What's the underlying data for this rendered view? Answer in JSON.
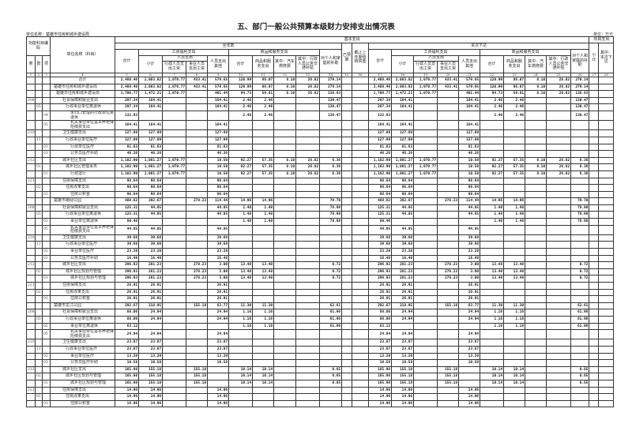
{
  "title": "五、部门一般公共预算本级财力安排支出情况表",
  "unit_name": "单位名称：楚雄市住房和城乡建设局",
  "unit_label": "单位：万元",
  "header": {
    "func_code": "功能科目编码",
    "lei": "类",
    "kuan": "款",
    "xiang": "项",
    "unit_col": "单位名称（科目）",
    "basic": "基本支出",
    "project": "项目支出",
    "full_year": "全年数",
    "this_issue": "本次下达",
    "col15": "已预算",
    "col16": "截止上年度结转资金",
    "total": "合计",
    "wage": "工资福利支出",
    "goods": "商品和服务支出",
    "personal": "对个人和家庭的补助",
    "subtotal": "小计",
    "staff": "人员支出",
    "staff_other": "人员支出其他",
    "admin_wage": "行政人员支出工资",
    "inst_wage": "事业人员支出工资",
    "goods_total": "合计",
    "goods_exp": "商品和服务支出",
    "car": "其中：汽车燃修费",
    "transport": "其中：行政人员公务交通补贴",
    "proj_subtotal": "小计",
    "proj_issue": "其中：本次下达",
    "col_numbers": [
      "1",
      "2",
      "3",
      "4",
      "5",
      "6",
      "7",
      "8",
      "9",
      "10",
      "11",
      "12",
      "13",
      "14",
      "15",
      "16",
      "17",
      "18",
      "19",
      "20",
      "21",
      "22",
      "23",
      "24",
      "25",
      "26",
      "27",
      "28"
    ]
  },
  "rows": [
    {
      "c": [
        "",
        "",
        ""
      ],
      "n": "合计",
      "i": -1,
      "v": [
        "2,488.46",
        "2,083.82",
        "1,070.77",
        "433.41",
        "579.65",
        "120.99",
        "86.07",
        "8.10",
        "26.82",
        "279.14"
      ]
    },
    {
      "c": [
        "",
        "",
        ""
      ],
      "n": "楚雄市住房和城乡建设局",
      "i": 0,
      "v": [
        "2,488.46",
        "2,083.82",
        "1,070.77",
        "433.41",
        "579.65",
        "120.99",
        "86.07",
        "8.10",
        "26.82",
        "279.14"
      ]
    },
    {
      "c": [
        "",
        "",
        ""
      ],
      "n": "楚雄市住房和城乡建设局",
      "i": 1,
      "v": [
        "1,706.77",
        "1,472.21",
        "1,070.77",
        "",
        "401.44",
        "94.73",
        "59.81",
        "8.10",
        "26.82",
        "136.83"
      ]
    },
    {
      "c": [
        "208",
        "",
        ""
      ],
      "n": "社会保障和就业支出",
      "i": 2,
      "v": [
        "297.34",
        "164.41",
        "",
        "",
        "164.41",
        "2.46",
        "2.46",
        "",
        "",
        "130.47"
      ]
    },
    {
      "c": [
        "",
        "05",
        ""
      ],
      "n": "行政事业单位离退休",
      "i": 3,
      "v": [
        "297.34",
        "164.41",
        "",
        "",
        "164.41",
        "2.46",
        "2.46",
        "",
        "",
        "130.47"
      ]
    },
    {
      "c": [
        "",
        "",
        "04"
      ],
      "n": "未归口管理的行政单位离退休",
      "i": 4,
      "v": [
        "132.93",
        "",
        "",
        "",
        "",
        "2.46",
        "2.46",
        "",
        "",
        "130.47"
      ]
    },
    {
      "c": [
        "",
        "",
        "05"
      ],
      "n": "机关事业单位基本养老保险缴费支出",
      "i": 4,
      "v": [
        "164.41",
        "164.41",
        "",
        "",
        "164.41",
        "",
        "",
        "",
        "",
        ""
      ]
    },
    {
      "c": [
        "210",
        "",
        ""
      ],
      "n": "卫生健康支出",
      "i": 2,
      "v": [
        "127.89",
        "127.89",
        "",
        "",
        "127.89",
        "",
        "",
        "",
        "",
        ""
      ]
    },
    {
      "c": [
        "",
        "11",
        ""
      ],
      "n": "行政事业单位医疗",
      "i": 3,
      "v": [
        "127.89",
        "127.89",
        "",
        "",
        "127.89",
        "",
        "",
        "",
        "",
        ""
      ]
    },
    {
      "c": [
        "",
        "",
        "01"
      ],
      "n": "行政单位医疗",
      "i": 4,
      "v": [
        "81.63",
        "81.63",
        "",
        "",
        "81.63",
        "",
        "",
        "",
        "",
        ""
      ]
    },
    {
      "c": [
        "",
        "",
        "03"
      ],
      "n": "公务员医疗补助",
      "i": 4,
      "v": [
        "46.26",
        "46.26",
        "",
        "",
        "46.26",
        "",
        "",
        "",
        "",
        ""
      ]
    },
    {
      "c": [
        "212",
        "",
        ""
      ],
      "n": "城乡社区支出",
      "i": 2,
      "v": [
        "1,182.90",
        "1,081.27",
        "1,070.77",
        "",
        "10.50",
        "92.27",
        "57.35",
        "8.10",
        "26.82",
        "6.36"
      ]
    },
    {
      "c": [
        "",
        "01",
        ""
      ],
      "n": "城乡社区管理事务",
      "i": 3,
      "v": [
        "1,182.90",
        "1,081.27",
        "1,070.77",
        "",
        "10.50",
        "92.27",
        "57.35",
        "8.10",
        "26.82",
        "6.36"
      ]
    },
    {
      "c": [
        "",
        "",
        "01"
      ],
      "n": "行政运行",
      "i": 4,
      "v": [
        "1,182.90",
        "1,081.27",
        "1,070.77",
        "",
        "10.50",
        "92.27",
        "57.35",
        "8.10",
        "26.82",
        "6.36"
      ]
    },
    {
      "c": [
        "221",
        "",
        ""
      ],
      "n": "住房保障支出",
      "i": 2,
      "v": [
        "98.64",
        "98.64",
        "",
        "",
        "98.64",
        "",
        "",
        "",
        "",
        ""
      ]
    },
    {
      "c": [
        "",
        "02",
        ""
      ],
      "n": "住房改革支出",
      "i": 3,
      "v": [
        "98.64",
        "98.64",
        "",
        "",
        "98.64",
        "",
        "",
        "",
        "",
        ""
      ]
    },
    {
      "c": [
        "",
        "",
        "01"
      ],
      "n": "住房公积金",
      "i": 4,
      "v": [
        "98.64",
        "98.64",
        "",
        "",
        "98.64",
        "",
        "",
        "",
        "",
        ""
      ]
    },
    {
      "c": [
        "",
        "",
        ""
      ],
      "n": "楚雄市峨碌公园",
      "i": 0,
      "v": [
        "488.82",
        "392.67",
        "",
        "278.23",
        "114.44",
        "14.96",
        "14.96",
        "",
        "",
        "79.70"
      ]
    },
    {
      "c": [
        "208",
        "",
        ""
      ],
      "n": "社会保障和就业支出",
      "i": 2,
      "v": [
        "125.31",
        "44.85",
        "",
        "",
        "44.85",
        "1.48",
        "1.48",
        "",
        "",
        "78.98"
      ]
    },
    {
      "c": [
        "",
        "05",
        ""
      ],
      "n": "行政事业单位离退休",
      "i": 3,
      "v": [
        "125.31",
        "44.85",
        "",
        "",
        "44.85",
        "1.48",
        "1.48",
        "",
        "",
        "78.98"
      ]
    },
    {
      "c": [
        "",
        "",
        "02"
      ],
      "n": "事业单位离退休",
      "i": 4,
      "v": [
        "80.46",
        "",
        "",
        "",
        "",
        "1.48",
        "1.48",
        "",
        "",
        "78.98"
      ]
    },
    {
      "c": [
        "",
        "",
        "05"
      ],
      "n": "机关事业单位基本养老保险缴费支出",
      "i": 4,
      "v": [
        "44.85",
        "44.85",
        "",
        "",
        "44.85",
        "",
        "",
        "",
        "",
        ""
      ]
    },
    {
      "c": [
        "210",
        "",
        ""
      ],
      "n": "卫生健康支出",
      "i": 2,
      "v": [
        "39.68",
        "39.68",
        "",
        "",
        "39.68",
        "",
        "",
        "",
        "",
        ""
      ]
    },
    {
      "c": [
        "",
        "11",
        ""
      ],
      "n": "行政事业单位医疗",
      "i": 3,
      "v": [
        "39.68",
        "39.68",
        "",
        "",
        "39.68",
        "",
        "",
        "",
        "",
        ""
      ]
    },
    {
      "c": [
        "",
        "",
        "02"
      ],
      "n": "事业单位医疗",
      "i": 4,
      "v": [
        "23.20",
        "23.20",
        "",
        "",
        "23.20",
        "",
        "",
        "",
        "",
        ""
      ]
    },
    {
      "c": [
        "",
        "",
        "03"
      ],
      "n": "公务员医疗补助",
      "i": 4,
      "v": [
        "16.48",
        "16.48",
        "",
        "",
        "16.48",
        "",
        "",
        "",
        "",
        ""
      ]
    },
    {
      "c": [
        "212",
        "",
        ""
      ],
      "n": "城乡社区支出",
      "i": 2,
      "v": [
        "296.93",
        "281.23",
        "",
        "278.23",
        "3.00",
        "13.48",
        "13.48",
        "",
        "",
        "0.72"
      ]
    },
    {
      "c": [
        "",
        "02",
        ""
      ],
      "n": "城乡社区规划与管理",
      "i": 3,
      "v": [
        "296.93",
        "281.23",
        "",
        "278.23",
        "3.00",
        "13.48",
        "13.48",
        "",
        "",
        "0.72"
      ]
    },
    {
      "c": [
        "",
        "",
        "01"
      ],
      "n": "城乡社区规划与管理",
      "i": 4,
      "v": [
        "296.93",
        "281.23",
        "",
        "278.23",
        "3.00",
        "13.48",
        "13.48",
        "",
        "",
        "0.72"
      ]
    },
    {
      "c": [
        "221",
        "",
        ""
      ],
      "n": "住房保障支出",
      "i": 2,
      "v": [
        "26.91",
        "26.91",
        "",
        "",
        "26.91",
        "",
        "",
        "",
        "",
        ""
      ]
    },
    {
      "c": [
        "",
        "02",
        ""
      ],
      "n": "住房改革支出",
      "i": 3,
      "v": [
        "26.91",
        "26.91",
        "",
        "",
        "26.91",
        "",
        "",
        "",
        "",
        ""
      ]
    },
    {
      "c": [
        "",
        "",
        "01"
      ],
      "n": "住房公积金",
      "i": 4,
      "v": [
        "26.91",
        "26.91",
        "",
        "",
        "26.91",
        "",
        "",
        "",
        "",
        ""
      ]
    },
    {
      "c": [
        "",
        "",
        ""
      ],
      "n": "楚雄市龙江公园",
      "i": 0,
      "v": [
        "292.67",
        "218.95",
        "",
        "155.18",
        "63.77",
        "11.30",
        "11.30",
        "",
        "",
        "62.61"
      ]
    },
    {
      "c": [
        "208",
        "",
        ""
      ],
      "n": "社会保障和就业支出",
      "i": 2,
      "v": [
        "88.06",
        "24.94",
        "",
        "",
        "24.94",
        "1.16",
        "1.16",
        "",
        "",
        "61.96"
      ]
    },
    {
      "c": [
        "",
        "05",
        ""
      ],
      "n": "行政事业单位离退休",
      "i": 3,
      "v": [
        "88.06",
        "24.94",
        "",
        "",
        "24.94",
        "1.16",
        "1.16",
        "",
        "",
        "61.96"
      ]
    },
    {
      "c": [
        "",
        "",
        "02"
      ],
      "n": "事业单位离退休",
      "i": 4,
      "v": [
        "63.12",
        "",
        "",
        "",
        "",
        "1.16",
        "1.16",
        "",
        "",
        "61.96"
      ]
    },
    {
      "c": [
        "",
        "",
        "05"
      ],
      "n": "机关事业单位基本养老保险缴费支出",
      "i": 4,
      "v": [
        "24.94",
        "24.94",
        "",
        "",
        "24.94",
        "",
        "",
        "",
        "",
        ""
      ]
    },
    {
      "c": [
        "210",
        "",
        ""
      ],
      "n": "卫生健康支出",
      "i": 2,
      "v": [
        "23.87",
        "23.87",
        "",
        "",
        "23.87",
        "",
        "",
        "",
        "",
        ""
      ]
    },
    {
      "c": [
        "",
        "11",
        ""
      ],
      "n": "行政事业单位医疗",
      "i": 3,
      "v": [
        "23.87",
        "23.87",
        "",
        "",
        "23.87",
        "",
        "",
        "",
        "",
        ""
      ]
    },
    {
      "c": [
        "",
        "",
        "02"
      ],
      "n": "事业单位医疗",
      "i": 4,
      "v": [
        "13.29",
        "13.29",
        "",
        "",
        "13.29",
        "",
        "",
        "",
        "",
        ""
      ]
    },
    {
      "c": [
        "",
        "",
        "03"
      ],
      "n": "公务员医疗补助",
      "i": 4,
      "v": [
        "10.58",
        "10.58",
        "",
        "",
        "10.58",
        "",
        "",
        "",
        "",
        ""
      ]
    },
    {
      "c": [
        "212",
        "",
        ""
      ],
      "n": "城乡社区支出",
      "i": 2,
      "v": [
        "165.98",
        "155.18",
        "",
        "155.18",
        "",
        "10.14",
        "10.14",
        "",
        "",
        "0.65"
      ]
    },
    {
      "c": [
        "",
        "02",
        ""
      ],
      "n": "城乡社区规划与管理",
      "i": 3,
      "v": [
        "165.98",
        "155.18",
        "",
        "155.18",
        "",
        "10.14",
        "10.14",
        "",
        "",
        "0.65"
      ]
    },
    {
      "c": [
        "",
        "",
        "01"
      ],
      "n": "城乡社区规划与管理",
      "i": 4,
      "v": [
        "165.98",
        "155.18",
        "",
        "155.18",
        "",
        "10.14",
        "10.14",
        "",
        "",
        "0.65"
      ]
    },
    {
      "c": [
        "221",
        "",
        ""
      ],
      "n": "住房保障支出",
      "i": 2,
      "v": [
        "14.96",
        "14.96",
        "",
        "",
        "14.96",
        "",
        "",
        "",
        "",
        ""
      ]
    },
    {
      "c": [
        "",
        "02",
        ""
      ],
      "n": "住房改革支出",
      "i": 3,
      "v": [
        "14.96",
        "14.96",
        "",
        "",
        "14.96",
        "",
        "",
        "",
        "",
        ""
      ]
    },
    {
      "c": [
        "",
        "",
        "01"
      ],
      "n": "住房公积金",
      "i": 4,
      "v": [
        "14.96",
        "14.96",
        "",
        "",
        "14.96",
        "",
        "",
        "",
        "",
        ""
      ]
    }
  ]
}
